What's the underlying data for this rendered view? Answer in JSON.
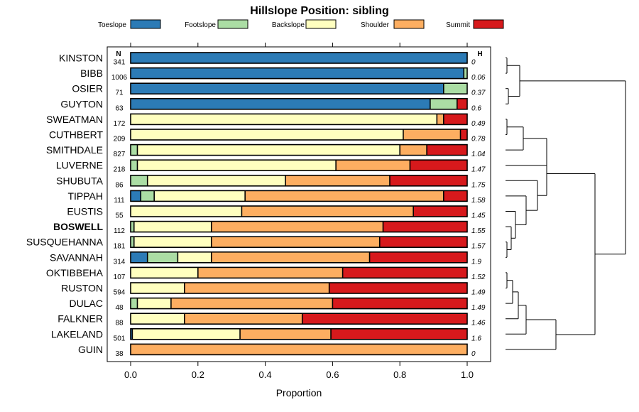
{
  "chart_data": {
    "type": "bar",
    "stacked": true,
    "orientation": "horizontal",
    "title": "Hillslope Position: sibling",
    "xlabel": "Proportion",
    "xlim": [
      0,
      1
    ],
    "xticks": [
      "0.0",
      "0.2",
      "0.4",
      "0.6",
      "0.8",
      "1.0"
    ],
    "xtick_values": [
      0,
      0.2,
      0.4,
      0.6,
      0.8,
      1.0
    ],
    "n_header": "N",
    "h_header": "H",
    "highlight": "BOSWELL",
    "legend": [
      {
        "name": "Toeslope",
        "color": "#2c7bb6"
      },
      {
        "name": "Footslope",
        "color": "#abdda4"
      },
      {
        "name": "Backslope",
        "color": "#ffffbf"
      },
      {
        "name": "Shoulder",
        "color": "#fdae61"
      },
      {
        "name": "Summit",
        "color": "#d7191c"
      }
    ],
    "rows": [
      {
        "name": "KINSTON",
        "n": "341",
        "h": "0",
        "values": [
          1.0,
          0,
          0,
          0,
          0
        ]
      },
      {
        "name": "BIBB",
        "n": "1006",
        "h": "0.06",
        "values": [
          0.99,
          0.01,
          0,
          0,
          0
        ]
      },
      {
        "name": "OSIER",
        "n": "71",
        "h": "0.37",
        "values": [
          0.93,
          0.07,
          0,
          0,
          0
        ]
      },
      {
        "name": "GUYTON",
        "n": "63",
        "h": "0.6",
        "values": [
          0.89,
          0.08,
          0,
          0,
          0.03
        ]
      },
      {
        "name": "SWEATMAN",
        "n": "172",
        "h": "0.49",
        "values": [
          0,
          0,
          0.91,
          0.02,
          0.07
        ]
      },
      {
        "name": "CUTHBERT",
        "n": "209",
        "h": "0.78",
        "values": [
          0,
          0,
          0.81,
          0.17,
          0.02
        ]
      },
      {
        "name": "SMITHDALE",
        "n": "827",
        "h": "1.04",
        "values": [
          0,
          0.02,
          0.78,
          0.08,
          0.12
        ]
      },
      {
        "name": "LUVERNE",
        "n": "218",
        "h": "1.47",
        "values": [
          0,
          0.02,
          0.59,
          0.22,
          0.17
        ]
      },
      {
        "name": "SHUBUTA",
        "n": "86",
        "h": "1.75",
        "values": [
          0,
          0.05,
          0.41,
          0.31,
          0.23
        ]
      },
      {
        "name": "TIPPAH",
        "n": "111",
        "h": "1.58",
        "values": [
          0.03,
          0.04,
          0.27,
          0.59,
          0.07
        ]
      },
      {
        "name": "EUSTIS",
        "n": "55",
        "h": "1.45",
        "values": [
          0,
          0,
          0.33,
          0.51,
          0.16
        ]
      },
      {
        "name": "BOSWELL",
        "n": "112",
        "h": "1.55",
        "values": [
          0,
          0.01,
          0.23,
          0.51,
          0.25
        ]
      },
      {
        "name": "SUSQUEHANNA",
        "n": "181",
        "h": "1.57",
        "values": [
          0,
          0.01,
          0.23,
          0.5,
          0.26
        ]
      },
      {
        "name": "SAVANNAH",
        "n": "314",
        "h": "1.9",
        "values": [
          0.05,
          0.09,
          0.1,
          0.47,
          0.29
        ]
      },
      {
        "name": "OKTIBBEHA",
        "n": "107",
        "h": "1.52",
        "values": [
          0,
          0,
          0.2,
          0.43,
          0.37
        ]
      },
      {
        "name": "RUSTON",
        "n": "594",
        "h": "1.49",
        "values": [
          0,
          0,
          0.16,
          0.43,
          0.41
        ]
      },
      {
        "name": "DULAC",
        "n": "48",
        "h": "1.49",
        "values": [
          0,
          0.02,
          0.1,
          0.48,
          0.4
        ]
      },
      {
        "name": "FALKNER",
        "n": "88",
        "h": "1.46",
        "values": [
          0,
          0,
          0.16,
          0.35,
          0.49
        ]
      },
      {
        "name": "LAKELAND",
        "n": "501",
        "h": "1.6",
        "values": [
          0.005,
          0,
          0.32,
          0.27,
          0.405
        ]
      },
      {
        "name": "GUIN",
        "n": "38",
        "h": "0",
        "values": [
          0,
          0,
          0,
          1.0,
          0
        ]
      }
    ]
  }
}
